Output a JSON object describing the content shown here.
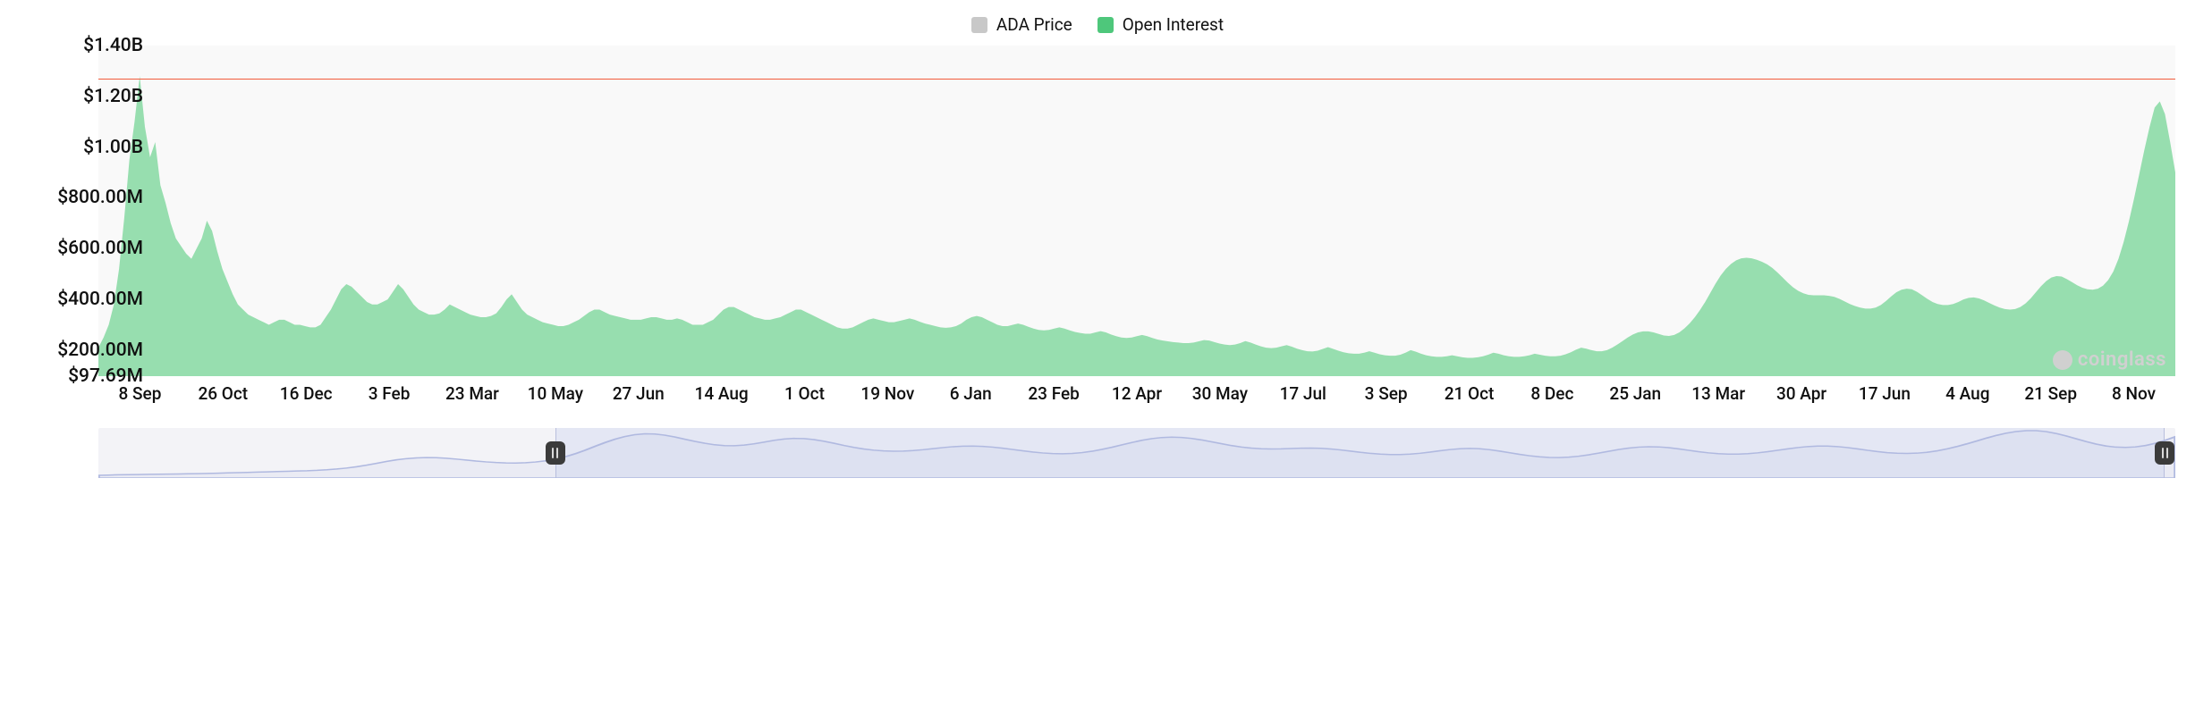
{
  "legend": {
    "series1": {
      "label": "ADA Price",
      "color": "#c8c8c8"
    },
    "series2": {
      "label": "Open Interest",
      "color": "#4ec77b"
    }
  },
  "watermark": {
    "text": "coinglass"
  },
  "main_chart": {
    "type": "area",
    "background_color": "#f9f9f9",
    "area_fill": "#7bd69a",
    "area_opacity": 0.78,
    "reference_line": {
      "value": 1270000000,
      "color": "#f25c3b",
      "width": 1
    },
    "ymin": 97690000,
    "ymax": 1400000000,
    "y_ticks": [
      {
        "v": 1400000000,
        "label": "$1.40B"
      },
      {
        "v": 1200000000,
        "label": "$1.20B"
      },
      {
        "v": 1000000000,
        "label": "$1.00B"
      },
      {
        "v": 800000000,
        "label": "$800.00M"
      },
      {
        "v": 600000000,
        "label": "$600.00M"
      },
      {
        "v": 400000000,
        "label": "$400.00M"
      },
      {
        "v": 200000000,
        "label": "$200.00M"
      },
      {
        "v": 97690000,
        "label": "$97.69M"
      }
    ],
    "y_label_fontsize": 21,
    "x_labels": [
      "8 Sep",
      "26 Oct",
      "16 Dec",
      "3 Feb",
      "23 Mar",
      "10 May",
      "27 Jun",
      "14 Aug",
      "1 Oct",
      "19 Nov",
      "6 Jan",
      "23 Feb",
      "12 Apr",
      "30 May",
      "17 Jul",
      "3 Sep",
      "21 Oct",
      "8 Dec",
      "25 Jan",
      "13 Mar",
      "30 Apr",
      "17 Jun",
      "4 Aug",
      "21 Sep",
      "8 Nov"
    ],
    "x_label_fontsize": 19,
    "values_M": [
      210,
      250,
      300,
      380,
      520,
      720,
      950,
      1100,
      1280,
      1080,
      960,
      1020,
      850,
      780,
      700,
      640,
      610,
      580,
      560,
      600,
      640,
      710,
      670,
      590,
      520,
      470,
      420,
      380,
      360,
      340,
      330,
      320,
      310,
      300,
      310,
      320,
      320,
      310,
      300,
      300,
      295,
      290,
      290,
      300,
      330,
      360,
      400,
      440,
      460,
      450,
      430,
      410,
      390,
      380,
      380,
      390,
      400,
      430,
      460,
      440,
      410,
      380,
      360,
      350,
      340,
      340,
      345,
      360,
      380,
      370,
      360,
      350,
      340,
      335,
      330,
      330,
      335,
      345,
      370,
      400,
      420,
      390,
      360,
      340,
      330,
      320,
      310,
      305,
      300,
      295,
      295,
      300,
      310,
      320,
      335,
      350,
      360,
      360,
      350,
      340,
      335,
      330,
      325,
      320,
      320,
      320,
      325,
      330,
      330,
      325,
      320,
      320,
      325,
      320,
      310,
      300,
      300,
      300,
      310,
      320,
      340,
      360,
      370,
      370,
      360,
      350,
      340,
      330,
      325,
      320,
      320,
      325,
      330,
      340,
      350,
      360,
      360,
      350,
      340,
      330,
      320,
      310,
      300,
      290,
      285,
      285,
      290,
      300,
      310,
      320,
      325,
      320,
      315,
      310,
      310,
      315,
      320,
      325,
      320,
      312,
      305,
      300,
      295,
      290,
      288,
      290,
      295,
      305,
      320,
      330,
      335,
      330,
      320,
      310,
      300,
      295,
      295,
      300,
      305,
      300,
      292,
      285,
      280,
      278,
      280,
      285,
      290,
      285,
      278,
      272,
      268,
      265,
      265,
      270,
      275,
      270,
      262,
      255,
      250,
      248,
      250,
      255,
      260,
      255,
      248,
      242,
      238,
      235,
      232,
      230,
      228,
      228,
      230,
      235,
      240,
      238,
      232,
      226,
      222,
      220,
      222,
      228,
      236,
      230,
      222,
      215,
      210,
      208,
      210,
      215,
      220,
      214,
      206,
      200,
      196,
      195,
      198,
      205,
      212,
      205,
      198,
      192,
      188,
      186,
      186,
      190,
      196,
      190,
      184,
      180,
      178,
      178,
      182,
      190,
      200,
      194,
      186,
      180,
      176,
      174,
      174,
      176,
      180,
      176,
      172,
      170,
      170,
      172,
      176,
      182,
      190,
      186,
      180,
      176,
      174,
      174,
      176,
      180,
      186,
      182,
      178,
      176,
      176,
      178,
      184,
      192,
      202,
      210,
      206,
      200,
      196,
      196,
      200,
      210,
      222,
      236,
      250,
      262,
      270,
      274,
      274,
      270,
      264,
      258,
      256,
      260,
      270,
      286,
      306,
      330,
      358,
      390,
      426,
      462,
      494,
      520,
      540,
      554,
      562,
      564,
      562,
      556,
      548,
      538,
      524,
      506,
      486,
      466,
      448,
      434,
      424,
      418,
      416,
      416,
      416,
      414,
      410,
      402,
      392,
      382,
      374,
      368,
      364,
      364,
      368,
      378,
      394,
      412,
      428,
      438,
      442,
      440,
      430,
      416,
      402,
      390,
      382,
      378,
      378,
      382,
      390,
      400,
      406,
      408,
      404,
      396,
      386,
      376,
      368,
      362,
      360,
      362,
      370,
      384,
      404,
      428,
      452,
      472,
      486,
      492,
      490,
      480,
      468,
      456,
      446,
      440,
      438,
      442,
      454,
      476,
      510,
      560,
      626,
      706,
      796,
      892,
      988,
      1078,
      1156,
      1180,
      1130,
      1020,
      900
    ]
  },
  "navigator": {
    "height": 56,
    "background": "#f3f3f7",
    "selection_fill": "#d9def2",
    "selection_opacity": 0.55,
    "line_color": "#b0b9e0",
    "line_width": 1.5,
    "handle_color": "#3b3b3b",
    "selection_start_pct": 22,
    "selection_end_pct": 99.5,
    "values_M": [
      150,
      155,
      160,
      162,
      165,
      168,
      170,
      172,
      175,
      178,
      182,
      186,
      190,
      195,
      200,
      205,
      210,
      215,
      220,
      225,
      230,
      236,
      244,
      254,
      268,
      286,
      310,
      340,
      374,
      408,
      438,
      460,
      474,
      480,
      478,
      468,
      452,
      434,
      416,
      400,
      388,
      380,
      378,
      384,
      398,
      420,
      452,
      496,
      552,
      618,
      690,
      760,
      822,
      872,
      906,
      922,
      918,
      896,
      862,
      822,
      782,
      746,
      718,
      702,
      700,
      712,
      736,
      768,
      800,
      824,
      836,
      832,
      814,
      784,
      746,
      706,
      670,
      640,
      618,
      604,
      598,
      600,
      610,
      626,
      646,
      666,
      682,
      692,
      694,
      688,
      674,
      654,
      630,
      606,
      584,
      566,
      554,
      550,
      556,
      572,
      598,
      632,
      672,
      716,
      760,
      800,
      832,
      852,
      860,
      854,
      836,
      808,
      774,
      738,
      704,
      676,
      656,
      644,
      640,
      642,
      648,
      654,
      656,
      652,
      640,
      622,
      600,
      578,
      558,
      544,
      536,
      536,
      544,
      560,
      582,
      606,
      628,
      644,
      650,
      644,
      626,
      600,
      570,
      540,
      514,
      494,
      482,
      480,
      488,
      506,
      532,
      564,
      598,
      630,
      656,
      674,
      682,
      678,
      664,
      642,
      616,
      590,
      568,
      552,
      544,
      544,
      552,
      568,
      590,
      616,
      642,
      666,
      684,
      694,
      694,
      684,
      666,
      642,
      616,
      592,
      572,
      560,
      556,
      562,
      578,
      604,
      640,
      684,
      734,
      788,
      842,
      892,
      934,
      964,
      980,
      980,
      962,
      928,
      882,
      830,
      778,
      732,
      696,
      674,
      668,
      678,
      704,
      746,
      802,
      868
    ]
  }
}
